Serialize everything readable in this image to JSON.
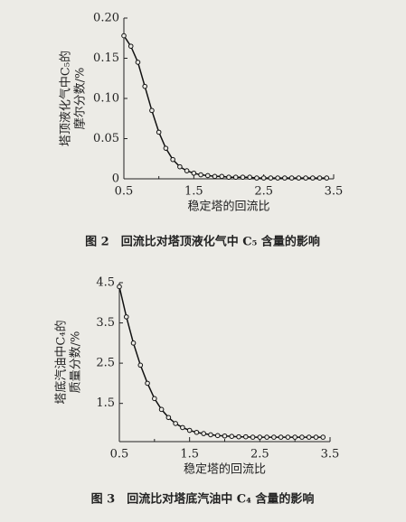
{
  "chart_data": [
    {
      "type": "line",
      "xlabel": "稳定塔的回流比",
      "ylabel": [
        "塔顶液化气中C₅的",
        "摩尔分数/%"
      ],
      "caption": "图 2　回流比对塔顶液化气中 C₅ 含量的影响",
      "x": [
        0.5,
        0.6,
        0.7,
        0.8,
        0.9,
        1.0,
        1.1,
        1.2,
        1.3,
        1.4,
        1.5,
        1.6,
        1.7,
        1.8,
        1.9,
        2.0,
        2.1,
        2.2,
        2.3,
        2.4,
        2.5,
        2.6,
        2.7,
        2.8,
        2.9,
        3.0,
        3.1,
        3.2,
        3.3,
        3.4
      ],
      "values": [
        0.178,
        0.165,
        0.145,
        0.115,
        0.085,
        0.058,
        0.038,
        0.024,
        0.015,
        0.01,
        0.007,
        0.005,
        0.004,
        0.003,
        0.003,
        0.002,
        0.002,
        0.002,
        0.002,
        0.001,
        0.001,
        0.001,
        0.001,
        0.001,
        0.001,
        0.001,
        0.001,
        0.001,
        0.001,
        0.001
      ],
      "color": "#111111",
      "xlim": [
        0.5,
        3.5
      ],
      "xticks": [
        0.5,
        1.5,
        2.5,
        3.5
      ],
      "xminor": [
        1,
        2,
        3
      ],
      "ylim": [
        0,
        0.2
      ],
      "yticks": [
        0,
        0.05,
        {
          "value": 0.1,
          "label": "0.10"
        },
        0.15,
        {
          "value": 0.2,
          "label": "0.20"
        }
      ]
    },
    {
      "type": "line",
      "xlabel": "稳定塔的回流比",
      "ylabel": [
        "塔底汽油中C₄的",
        "质量分数/%"
      ],
      "caption": "图 3　回流比对塔底汽油中 C₄ 含量的影响",
      "x": [
        0.5,
        0.6,
        0.7,
        0.8,
        0.9,
        1.0,
        1.1,
        1.2,
        1.3,
        1.4,
        1.5,
        1.6,
        1.7,
        1.8,
        1.9,
        2.0,
        2.1,
        2.2,
        2.3,
        2.4,
        2.5,
        2.6,
        2.7,
        2.8,
        2.9,
        3.0,
        3.1,
        3.2,
        3.3,
        3.4
      ],
      "values": [
        4.4,
        3.65,
        3.0,
        2.45,
        2.0,
        1.62,
        1.35,
        1.15,
        1.0,
        0.9,
        0.83,
        0.78,
        0.75,
        0.72,
        0.7,
        0.69,
        0.68,
        0.67,
        0.67,
        0.66,
        0.66,
        0.66,
        0.66,
        0.66,
        0.66,
        0.66,
        0.66,
        0.66,
        0.66,
        0.66
      ],
      "color": "#111111",
      "xlim": [
        0.5,
        3.5
      ],
      "xticks": [
        0.5,
        1.5,
        2.5,
        3.5
      ],
      "xminor": [
        1,
        2,
        3
      ],
      "ylim": [
        0.55,
        4.5
      ],
      "yticks": [
        1.5,
        2.5,
        3.5,
        4.5
      ]
    }
  ]
}
